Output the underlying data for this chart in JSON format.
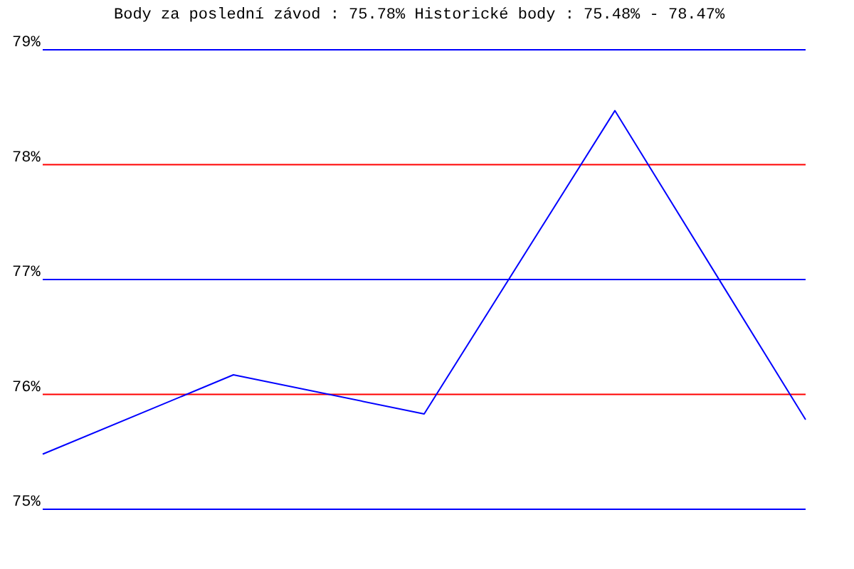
{
  "chart_data": {
    "type": "line",
    "title": "Body za poslední závod : 75.78%  Historické body : 75.48% - 78.47%",
    "categories": [
      null,
      null,
      null,
      null,
      null
    ],
    "series": [
      {
        "color": "#0000ff",
        "values": [
          75.48,
          76.17,
          75.83,
          78.47,
          75.78
        ]
      }
    ],
    "ylim": [
      75,
      79
    ],
    "yticks": [
      {
        "value": 75,
        "label": "75%"
      },
      {
        "value": 76,
        "label": "76%"
      },
      {
        "value": 77,
        "label": "77%"
      },
      {
        "value": 78,
        "label": "78%"
      },
      {
        "value": 79,
        "label": "79%"
      }
    ],
    "grid": false,
    "tick_labels": "y",
    "marker": "none",
    "line_style": "solid",
    "ref_lines": [
      {
        "axis": "y",
        "value": 75,
        "color": "#0000ff"
      },
      {
        "axis": "y",
        "value": 76,
        "color": "#ff0000"
      },
      {
        "axis": "y",
        "value": 77,
        "color": "#0000ff"
      },
      {
        "axis": "y",
        "value": 78,
        "color": "#ff0000"
      },
      {
        "axis": "y",
        "value": 79,
        "color": "#0000ff"
      }
    ]
  }
}
